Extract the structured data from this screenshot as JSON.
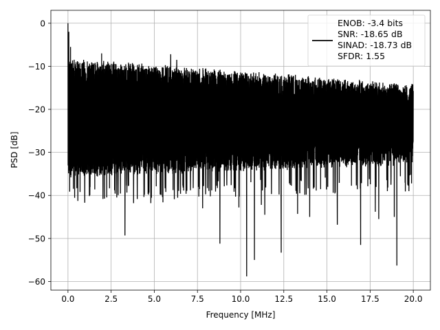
{
  "chart_data": {
    "type": "line",
    "title": "",
    "xlabel": "Frequency [MHz]",
    "ylabel": "PSD [dB]",
    "xlim": [
      -0.99,
      20.99
    ],
    "ylim": [
      -62,
      3
    ],
    "grid": true,
    "x_ticks": [
      0.0,
      2.5,
      5.0,
      7.5,
      10.0,
      12.5,
      15.0,
      17.5,
      20.0
    ],
    "x_tick_labels": [
      "0.0",
      "2.5",
      "5.0",
      "7.5",
      "10.0",
      "12.5",
      "15.0",
      "17.5",
      "20.0"
    ],
    "y_ticks": [
      0,
      -10,
      -20,
      -30,
      -40,
      -50,
      -60
    ],
    "y_tick_labels": [
      "0",
      "−10",
      "−20",
      "−30",
      "−40",
      "−50",
      "−60"
    ],
    "line_color": "#000000",
    "legend": {
      "placement": "top-right",
      "entries": [
        "ENOB: -3.4 bits",
        "SNR: -18.65 dB",
        "SINAD: -18.73 dB",
        "SFDR: 1.55"
      ]
    },
    "series": [
      {
        "x_start": 0.0,
        "x_end": 20.0,
        "noise_floor_upper": [
          -10,
          -16
        ],
        "noise_floor_lower": [
          -34,
          -31
        ],
        "peak_points": [
          {
            "x": 0.0,
            "y": 0.0
          },
          {
            "x": 0.05,
            "y": -2.0
          },
          {
            "x": 0.15,
            "y": -5.5
          },
          {
            "x": 1.95,
            "y": -7.0
          },
          {
            "x": 5.95,
            "y": -7.2
          },
          {
            "x": 6.3,
            "y": -8.5
          }
        ],
        "dip_points": [
          {
            "x": 0.7,
            "y": -39.2
          },
          {
            "x": 2.7,
            "y": -38.8
          },
          {
            "x": 3.3,
            "y": -49.3
          },
          {
            "x": 3.8,
            "y": -41.8
          },
          {
            "x": 4.8,
            "y": -41.8
          },
          {
            "x": 5.5,
            "y": -41.6
          },
          {
            "x": 7.8,
            "y": -43.0
          },
          {
            "x": 8.8,
            "y": -51.2
          },
          {
            "x": 9.9,
            "y": -42.8
          },
          {
            "x": 10.35,
            "y": -58.8
          },
          {
            "x": 10.8,
            "y": -55.0
          },
          {
            "x": 11.2,
            "y": -42.2
          },
          {
            "x": 11.4,
            "y": -44.5
          },
          {
            "x": 12.35,
            "y": -53.3
          },
          {
            "x": 13.3,
            "y": -44.3
          },
          {
            "x": 14.0,
            "y": -45.0
          },
          {
            "x": 15.6,
            "y": -46.8
          },
          {
            "x": 16.95,
            "y": -51.5
          },
          {
            "x": 17.8,
            "y": -43.8
          },
          {
            "x": 18.0,
            "y": -45.5
          },
          {
            "x": 18.9,
            "y": -45.0
          },
          {
            "x": 19.05,
            "y": -56.3
          },
          {
            "x": 19.9,
            "y": -37.2
          }
        ]
      }
    ]
  }
}
